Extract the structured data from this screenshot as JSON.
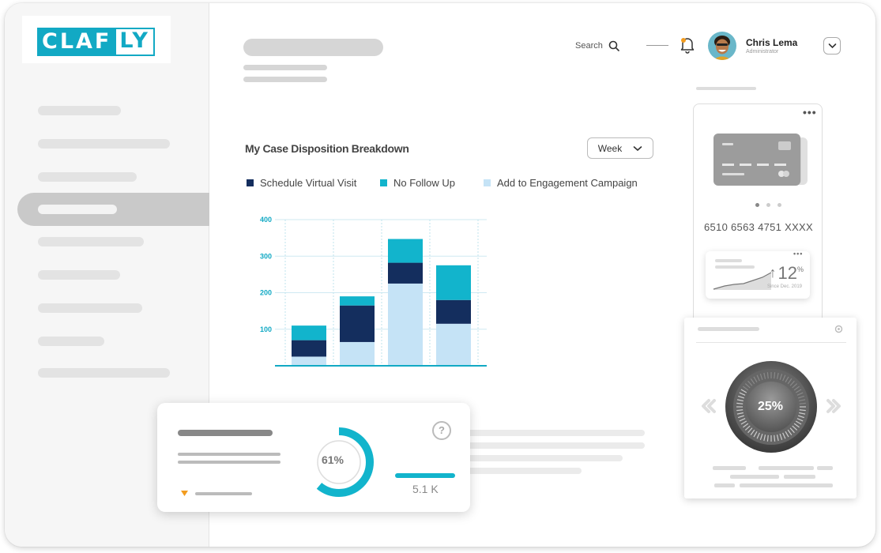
{
  "brand": {
    "part1": "CLAF",
    "part2": "LY",
    "accent": "#12a9c4"
  },
  "header": {
    "search_label": "Search",
    "user_name": "Chris Lema",
    "user_role": "Administrator"
  },
  "chart_section": {
    "title": "My Case Disposition Breakdown",
    "period_label": "Week"
  },
  "chart_data": {
    "type": "bar",
    "stacked": true,
    "categories": [
      "",
      "",
      "",
      ""
    ],
    "series": [
      {
        "name": "Add to Engagement Campaign",
        "color": "#c5e3f6",
        "values": [
          25,
          65,
          225,
          115
        ]
      },
      {
        "name": "Schedule Virtual Visit",
        "color": "#142e5e",
        "values": [
          45,
          100,
          57,
          65
        ]
      },
      {
        "name": "No Follow Up",
        "color": "#12b4cc",
        "values": [
          40,
          25,
          65,
          95
        ]
      }
    ],
    "y_ticks": [
      100,
      200,
      300,
      400
    ],
    "ylim": [
      0,
      400
    ],
    "grid": true
  },
  "legend": {
    "schedule": "Schedule Virtual Visit",
    "nofollow": "No Follow Up",
    "campaign": "Add to Engagement Campaign"
  },
  "card_panel": {
    "card_number": "6510 6563 4751 XXXX",
    "growth_value": "12",
    "growth_unit": "%",
    "growth_since": "Since Dec. 2019"
  },
  "thermostat": {
    "value": "25%"
  },
  "stat_card": {
    "donut_value": "61%",
    "donut_fraction": 0.61,
    "count_value": "5.1 K"
  }
}
